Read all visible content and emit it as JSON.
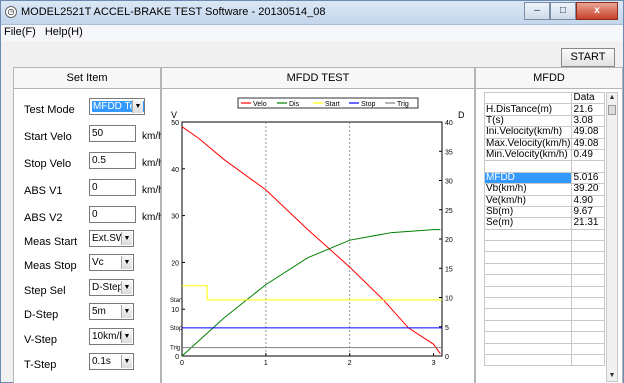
{
  "window": {
    "title": "MODEL2521T ACCEL-BRAKE TEST Software - 20130514_08",
    "minimize_icon": "minimize-icon",
    "maximize_icon": "maximize-icon",
    "close_icon": "close-icon",
    "min_glyph": "–",
    "max_glyph": "□",
    "close_glyph": "x"
  },
  "menu": [
    {
      "label": "File(F)"
    },
    {
      "label": "Help(H)"
    }
  ],
  "toolbar": {
    "start_label": "START"
  },
  "set_item": {
    "header": "Set Item",
    "test_mode": {
      "label": "Test Mode",
      "value": "MFDD Test"
    },
    "start_velo": {
      "label": "Start Velo",
      "value": "50",
      "unit": "km/h"
    },
    "stop_velo": {
      "label": "Stop Velo",
      "value": "0.5",
      "unit": "km/h"
    },
    "abs_v1": {
      "label": "ABS V1",
      "value": "0",
      "unit": "km/h"
    },
    "abs_v2": {
      "label": "ABS V2",
      "value": "0",
      "unit": "km/h"
    },
    "meas_start": {
      "label": "Meas Start",
      "value": "Ext.SW"
    },
    "meas_stop": {
      "label": "Meas Stop",
      "value": "Vc"
    },
    "step_sel": {
      "label": "Step Sel",
      "value": "D-Step"
    },
    "d_step": {
      "label": "D-Step",
      "value": "5m"
    },
    "v_step": {
      "label": "V-Step",
      "value": "10km/h"
    },
    "t_step": {
      "label": "T-Step",
      "value": "0.1s"
    }
  },
  "mfdd_test": {
    "header": "MFDD TEST"
  },
  "mfdd": {
    "header": "MFDD",
    "column_header": "Data",
    "rows": [
      {
        "name": "H.DisTance(m)",
        "value": "21.6"
      },
      {
        "name": "T(s)",
        "value": "3.08"
      },
      {
        "name": "Ini.Velocity(km/h)",
        "value": "49.08"
      },
      {
        "name": "Max.Velocity(km/h)",
        "value": "49.08"
      },
      {
        "name": "Min.Velocity(km/h)",
        "value": "0.49"
      },
      {
        "name": "",
        "value": ""
      },
      {
        "name": "MFDD",
        "value": "5.016"
      },
      {
        "name": "Vb(km/h)",
        "value": "39.20"
      },
      {
        "name": "Ve(km/h)",
        "value": "4.90"
      },
      {
        "name": "Sb(m)",
        "value": "9.67"
      },
      {
        "name": "Se(m)",
        "value": "21.31"
      },
      {
        "name": "",
        "value": ""
      },
      {
        "name": "",
        "value": ""
      },
      {
        "name": "",
        "value": ""
      },
      {
        "name": "",
        "value": ""
      },
      {
        "name": "",
        "value": ""
      },
      {
        "name": "",
        "value": ""
      },
      {
        "name": "",
        "value": ""
      },
      {
        "name": "",
        "value": ""
      },
      {
        "name": "",
        "value": ""
      },
      {
        "name": "",
        "value": ""
      },
      {
        "name": "",
        "value": ""
      },
      {
        "name": "",
        "value": ""
      }
    ]
  },
  "chart_data": {
    "type": "line",
    "ylabel_left": "V",
    "ylabel_right": "D",
    "xlim": [
      0,
      3.1
    ],
    "ylim_left": [
      0,
      50
    ],
    "ylim_right": [
      0,
      40
    ],
    "x_ticks": [
      "0",
      "1",
      "2",
      "3"
    ],
    "y_ticks_left": [
      "0",
      "10",
      "20",
      "30",
      "40",
      "50"
    ],
    "y_ticks_right": [
      "0",
      "5",
      "10",
      "15",
      "20",
      "25",
      "30",
      "35",
      "40"
    ],
    "left_markers": [
      "Start",
      "Stop",
      "Trig"
    ],
    "grid": "vertical dashed at x=1 and x=2",
    "legend_position": "top",
    "series": [
      {
        "name": "Velo",
        "color": "#ff0000",
        "axis": "left",
        "x": [
          0,
          0.2,
          0.5,
          1.0,
          1.5,
          2.0,
          2.4,
          2.7,
          3.0,
          3.08
        ],
        "y": [
          49,
          46.5,
          42,
          35.5,
          27,
          19,
          12,
          6,
          2.5,
          0.5
        ]
      },
      {
        "name": "Dis",
        "color": "#008000",
        "axis": "right",
        "x": [
          0,
          0.5,
          1.0,
          1.5,
          2.0,
          2.5,
          3.0,
          3.08
        ],
        "y": [
          0,
          6.5,
          12.2,
          16.8,
          19.8,
          21.1,
          21.6,
          21.6
        ]
      },
      {
        "name": "Start",
        "color": "#ffff00",
        "axis": "left",
        "x": [
          0,
          0.3,
          0.3,
          3.1
        ],
        "y": [
          15,
          15,
          12,
          12
        ]
      },
      {
        "name": "Stop",
        "color": "#0000ff",
        "axis": "left",
        "x": [
          0,
          3.1
        ],
        "y": [
          6,
          6
        ]
      },
      {
        "name": "Trig",
        "color": "#808080",
        "axis": "left",
        "x": [
          0,
          3.1
        ],
        "y": [
          1.8,
          1.8
        ]
      }
    ]
  }
}
